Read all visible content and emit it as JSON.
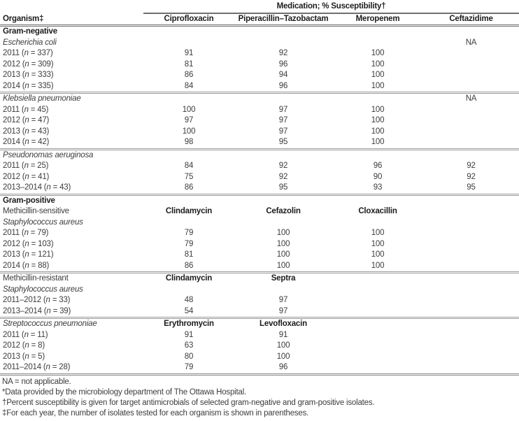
{
  "table": {
    "span_header": "Medication; % Susceptibility†",
    "col_headers": [
      "Organism‡",
      "Ciprofloxacin",
      "Piperacillin–Tazobactam",
      "Meropenem",
      "Ceftazidime"
    ],
    "rows": [
      {
        "label": "Gram-negative",
        "label_style": "bold",
        "cells": [
          "",
          "",
          "",
          ""
        ],
        "cells_bold": false,
        "sep": false
      },
      {
        "label": "Escherichia coli",
        "label_style": "italic",
        "cells": [
          "",
          "",
          "",
          "NA"
        ],
        "cells_bold": false,
        "sep": false
      },
      {
        "label": "2011 (n = 337)",
        "label_style": "plain",
        "cells": [
          "91",
          "92",
          "100",
          ""
        ],
        "cells_bold": false,
        "sep": false
      },
      {
        "label": "2012 (n = 309)",
        "label_style": "plain",
        "cells": [
          "81",
          "96",
          "100",
          ""
        ],
        "cells_bold": false,
        "sep": false
      },
      {
        "label": "2013 (n = 333)",
        "label_style": "plain",
        "cells": [
          "86",
          "94",
          "100",
          ""
        ],
        "cells_bold": false,
        "sep": false
      },
      {
        "label": "2014 (n = 335)",
        "label_style": "plain",
        "cells": [
          "84",
          "96",
          "100",
          ""
        ],
        "cells_bold": false,
        "sep": false
      },
      {
        "label": "Klebsiella pneumoniae",
        "label_style": "italic",
        "cells": [
          "",
          "",
          "",
          "NA"
        ],
        "cells_bold": false,
        "sep": true
      },
      {
        "label": "2011 (n = 45)",
        "label_style": "plain",
        "cells": [
          "100",
          "97",
          "100",
          ""
        ],
        "cells_bold": false,
        "sep": false
      },
      {
        "label": "2012 (n = 47)",
        "label_style": "plain",
        "cells": [
          "97",
          "97",
          "100",
          ""
        ],
        "cells_bold": false,
        "sep": false
      },
      {
        "label": "2013 (n = 43)",
        "label_style": "plain",
        "cells": [
          "100",
          "97",
          "100",
          ""
        ],
        "cells_bold": false,
        "sep": false
      },
      {
        "label": "2014 (n = 42)",
        "label_style": "plain",
        "cells": [
          "98",
          "95",
          "100",
          ""
        ],
        "cells_bold": false,
        "sep": false
      },
      {
        "label": "Pseudonomas aeruginosa",
        "label_style": "italic",
        "cells": [
          "",
          "",
          "",
          ""
        ],
        "cells_bold": false,
        "sep": true
      },
      {
        "label": "2011 (n = 25)",
        "label_style": "plain",
        "cells": [
          "84",
          "92",
          "96",
          "92"
        ],
        "cells_bold": false,
        "sep": false
      },
      {
        "label": "2012 (n = 41)",
        "label_style": "plain",
        "cells": [
          "75",
          "92",
          "90",
          "92"
        ],
        "cells_bold": false,
        "sep": false
      },
      {
        "label": "2013–2014 (n = 43)",
        "label_style": "plain",
        "cells": [
          "86",
          "95",
          "93",
          "95"
        ],
        "cells_bold": false,
        "sep": false
      },
      {
        "label": "Gram-positive",
        "label_style": "bold",
        "cells": [
          "",
          "",
          "",
          ""
        ],
        "cells_bold": false,
        "sep": true
      },
      {
        "label": "Methicillin-sensitive",
        "label_style": "plain",
        "cells": [
          "Clindamycin",
          "Cefazolin",
          "Cloxacillin",
          ""
        ],
        "cells_bold": true,
        "sep": false
      },
      {
        "label": "Staphylococcus aureus",
        "label_style": "italic",
        "cells": [
          "",
          "",
          "",
          ""
        ],
        "cells_bold": false,
        "sep": false
      },
      {
        "label": "2011 (n = 79)",
        "label_style": "plain",
        "cells": [
          "79",
          "100",
          "100",
          ""
        ],
        "cells_bold": false,
        "sep": false
      },
      {
        "label": "2012 (n = 103)",
        "label_style": "plain",
        "cells": [
          "79",
          "100",
          "100",
          ""
        ],
        "cells_bold": false,
        "sep": false
      },
      {
        "label": "2013 (n = 121)",
        "label_style": "plain",
        "cells": [
          "81",
          "100",
          "100",
          ""
        ],
        "cells_bold": false,
        "sep": false
      },
      {
        "label": "2014 (n = 88)",
        "label_style": "plain",
        "cells": [
          "86",
          "100",
          "100",
          ""
        ],
        "cells_bold": false,
        "sep": false
      },
      {
        "label": "Methicillin-resistant",
        "label_style": "plain",
        "cells": [
          "Clindamycin",
          "Septra",
          "",
          ""
        ],
        "cells_bold": true,
        "sep": true
      },
      {
        "label": "Staphylococcus aureus",
        "label_style": "italic",
        "cells": [
          "",
          "",
          "",
          ""
        ],
        "cells_bold": false,
        "sep": false
      },
      {
        "label": "2011–2012 (n = 33)",
        "label_style": "plain",
        "cells": [
          "48",
          "97",
          "",
          ""
        ],
        "cells_bold": false,
        "sep": false
      },
      {
        "label": "2013–2014 (n = 39)",
        "label_style": "plain",
        "cells": [
          "54",
          "97",
          "",
          ""
        ],
        "cells_bold": false,
        "sep": false
      },
      {
        "label": "Streptococcus pneumoniae",
        "label_style": "italic",
        "cells": [
          "Erythromycin",
          "Levofloxacin",
          "",
          ""
        ],
        "cells_bold": true,
        "sep": true
      },
      {
        "label": "2011 (n = 11)",
        "label_style": "plain",
        "cells": [
          "91",
          "91",
          "",
          ""
        ],
        "cells_bold": false,
        "sep": false
      },
      {
        "label": "2012 (n = 8)",
        "label_style": "plain",
        "cells": [
          "63",
          "100",
          "",
          ""
        ],
        "cells_bold": false,
        "sep": false
      },
      {
        "label": "2013 (n = 5)",
        "label_style": "plain",
        "cells": [
          "80",
          "100",
          "",
          ""
        ],
        "cells_bold": false,
        "sep": false
      },
      {
        "label": "2011–2014 (n = 28)",
        "label_style": "plain",
        "cells": [
          "79",
          "96",
          "",
          ""
        ],
        "cells_bold": false,
        "sep": false
      }
    ]
  },
  "footnotes": [
    "NA = not applicable.",
    "*Data provided by the microbiology department of The Ottawa Hospital.",
    "†Percent susceptibility is given for target antimicrobials of selected gram-negative and gram-positive isolates.",
    "‡For each year, the number of isolates tested for each organism is shown in parentheses."
  ],
  "colors": {
    "text": "#3d3d3d",
    "heading_text": "#1c1c1c",
    "rule": "#6f6f6f"
  }
}
